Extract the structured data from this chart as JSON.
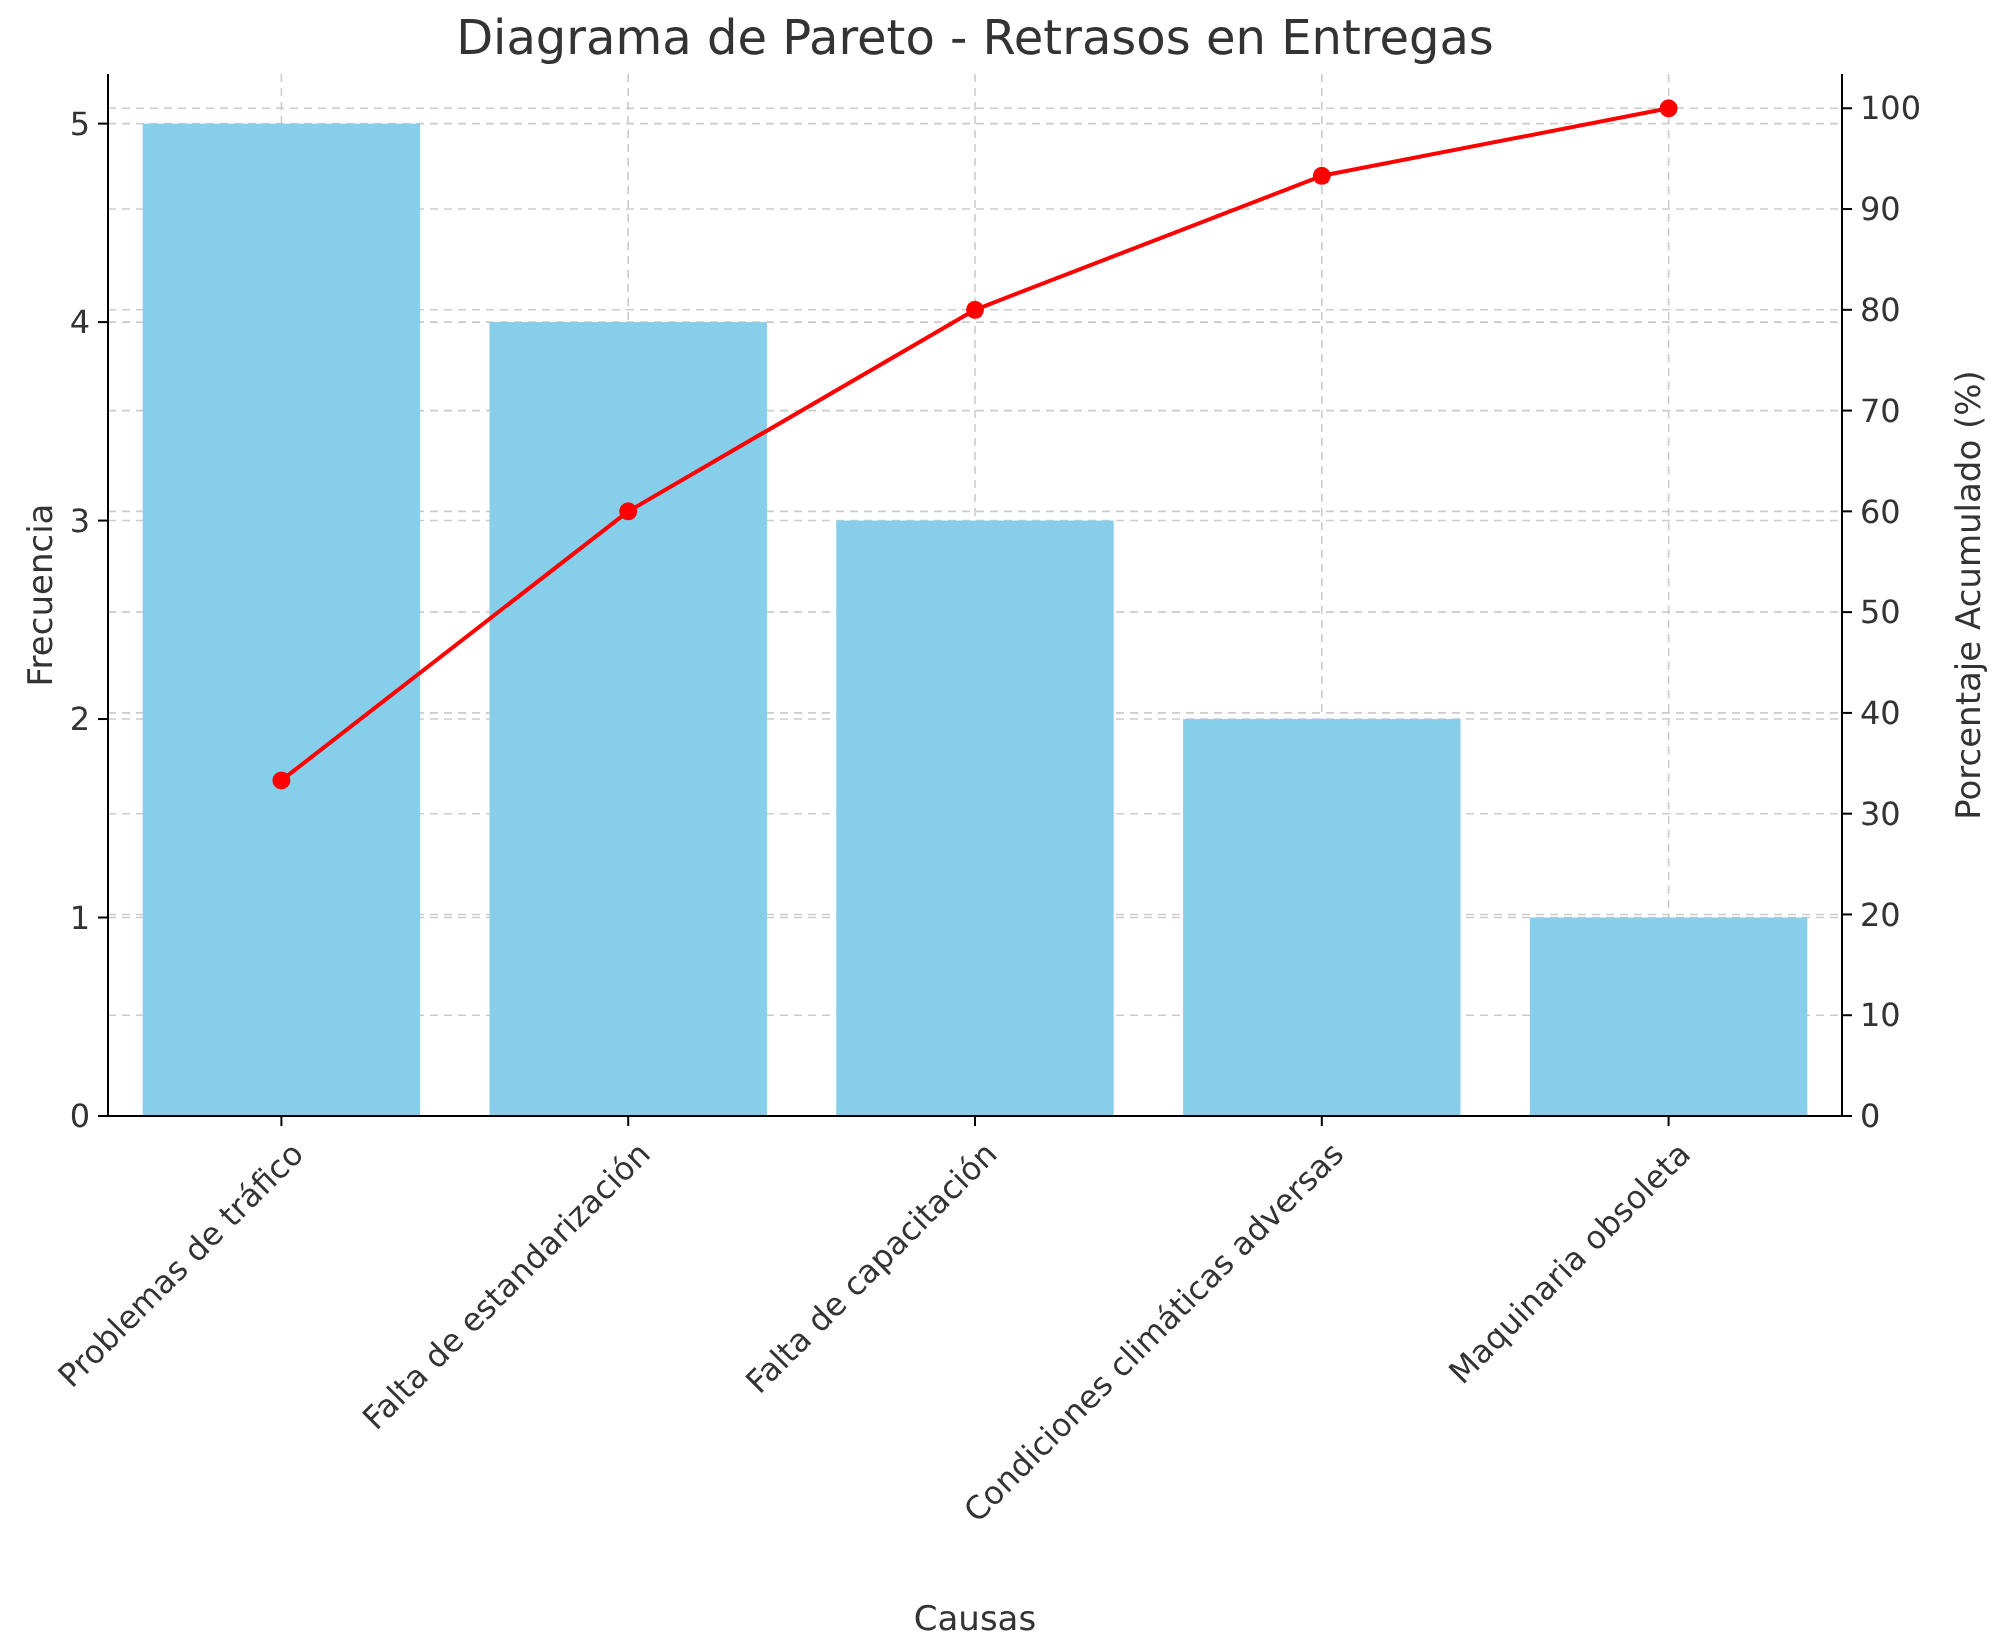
{
  "chart_data": {
    "type": "bar",
    "title": "Diagrama de Pareto - Retrasos en Entregas",
    "xlabel": "Causas",
    "ylabel": "Frecuencia",
    "y2label": "Porcentaje Acumulado (%)",
    "categories": [
      "Problemas de tráfico",
      "Falta de estandarización",
      "Falta de capacitación",
      "Condiciones climáticas adversas",
      "Maquinaria obsoleta"
    ],
    "series": [
      {
        "color": "#87ceeb",
        "values": [
          5,
          4,
          3,
          2,
          1
        ]
      },
      {
        "type": "line",
        "axis": "y2",
        "color": "#ff0000",
        "marker": "circle",
        "values": [
          33.3,
          60,
          80,
          93.3,
          100
        ]
      }
    ],
    "ylim": [
      0,
      5.25
    ],
    "yticks": [
      0,
      1,
      2,
      3,
      4,
      5
    ],
    "y2lim": [
      0,
      103.4
    ],
    "y2ticks": [
      0,
      10,
      20,
      30,
      40,
      50,
      60,
      70,
      80,
      90,
      100
    ],
    "grid": true
  }
}
